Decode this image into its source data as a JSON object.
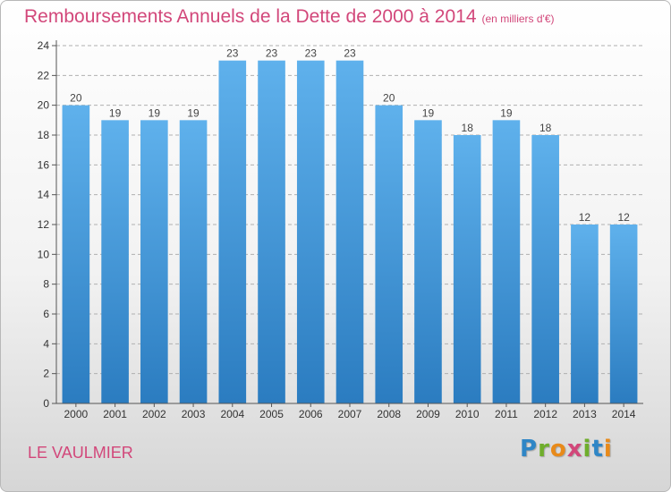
{
  "header": {
    "title": "Remboursements Annuels de la Dette de 2000 à 2014",
    "subtitle": "(en milliers d'€)"
  },
  "footer": {
    "location": "LE VAULMIER",
    "logo": "Proxiti"
  },
  "colors": {
    "title": "#d2477a",
    "bar_top": "#5fb1ec",
    "bar_bottom": "#2b7cc0",
    "grid": "#b0b0b0"
  },
  "chart_data": {
    "type": "bar",
    "title": "Remboursements Annuels de la Dette de 2000 à 2014",
    "subtitle": "(en milliers d'€)",
    "xlabel": "",
    "ylabel": "",
    "categories": [
      "2000",
      "2001",
      "2002",
      "2003",
      "2004",
      "2005",
      "2006",
      "2007",
      "2008",
      "2009",
      "2010",
      "2011",
      "2012",
      "2013",
      "2014"
    ],
    "values": [
      20,
      19,
      19,
      19,
      23,
      23,
      23,
      23,
      20,
      19,
      18,
      19,
      18,
      12,
      12
    ],
    "ylim": [
      0,
      24
    ],
    "yticks": [
      0,
      2,
      4,
      6,
      8,
      10,
      12,
      14,
      16,
      18,
      20,
      22,
      24
    ],
    "grid": true,
    "grid_style": "dashed horizontal",
    "data_labels": true
  }
}
